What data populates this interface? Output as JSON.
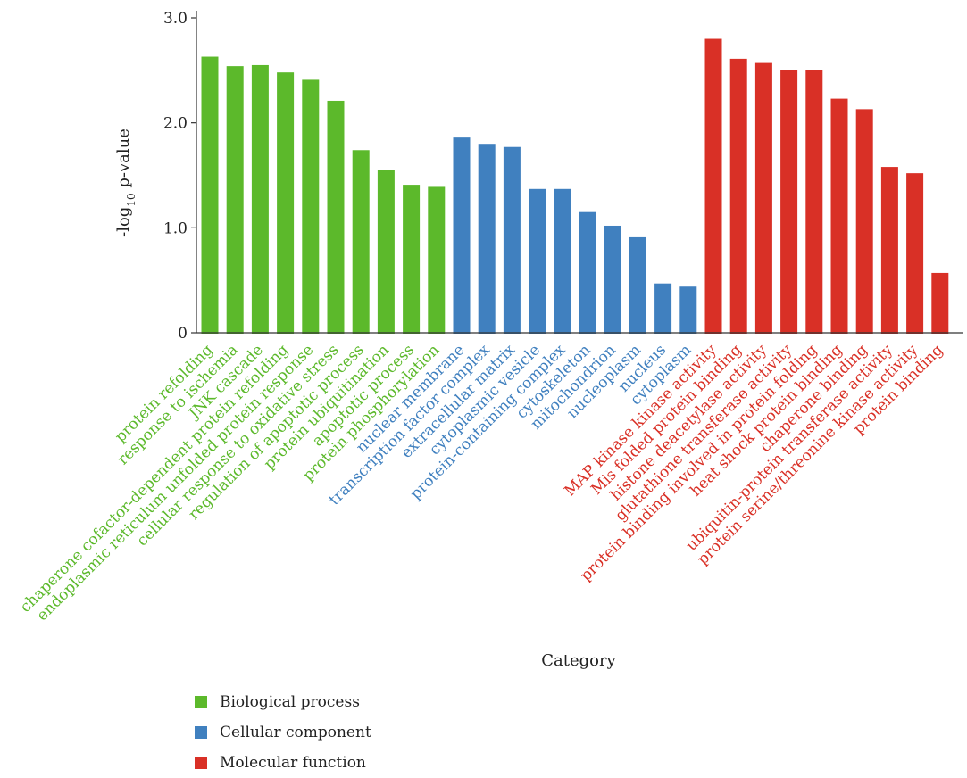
{
  "colors": {
    "biological_process": "#5cb92b",
    "cellular_component": "#4080bf",
    "molecular_function": "#d93026"
  },
  "chart_data": {
    "type": "bar",
    "xlabel": "Category",
    "ylabel_prefix": "-log",
    "ylabel_sub": "10",
    "ylabel_suffix": " p-value",
    "ylim": [
      0,
      3.0
    ],
    "yticks": [
      "0",
      "1.0",
      "2.0",
      "3.0"
    ],
    "grid": false,
    "legend_position": "bottom-left",
    "categories": [
      "protein refolding",
      "response to ischemia",
      "JNK cascade",
      "chaperone cofactor-dependent protein refolding",
      "endoplasmic reticulum unfolded protein response",
      "cellular response to oxidative stress",
      "regulation of apoptotic process",
      "protein ubiquitination",
      "apoptotic process",
      "protein phosphorylation",
      "nuclear membrane",
      "transcription factor complex",
      "extracellular matrix",
      "cytoplasmic vesicle",
      "protein-containing complex",
      "cytoskeleton",
      "mitochondrion",
      "nucleoplasm",
      "nucleus",
      "cytoplasm",
      "MAP kinase kinase activity",
      "Mis folded protein binding",
      "histone deacetylase activity",
      "glutathione transferase activity",
      "protein binding involved in protein folding",
      "heat shock protein binding",
      "chaperone binding",
      "ubiquitin-protein transferase activity",
      "protein serine/threonine kinase activity",
      "protein binding"
    ],
    "groups": [
      "Biological process",
      "Biological process",
      "Biological process",
      "Biological process",
      "Biological process",
      "Biological process",
      "Biological process",
      "Biological process",
      "Biological process",
      "Biological process",
      "Cellular component",
      "Cellular component",
      "Cellular component",
      "Cellular component",
      "Cellular component",
      "Cellular component",
      "Cellular component",
      "Cellular component",
      "Cellular component",
      "Cellular component",
      "Molecular function",
      "Molecular function",
      "Molecular function",
      "Molecular function",
      "Molecular function",
      "Molecular function",
      "Molecular function",
      "Molecular function",
      "Molecular function",
      "Molecular function"
    ],
    "values": [
      2.63,
      2.54,
      2.55,
      2.48,
      2.41,
      2.21,
      1.74,
      1.55,
      1.41,
      1.39,
      1.86,
      1.8,
      1.77,
      1.37,
      1.37,
      1.15,
      1.02,
      0.91,
      0.47,
      0.44,
      2.8,
      2.61,
      2.57,
      2.5,
      2.5,
      2.23,
      2.13,
      1.58,
      1.52,
      0.57
    ],
    "legend": [
      "Biological process",
      "Cellular component",
      "Molecular function"
    ]
  }
}
